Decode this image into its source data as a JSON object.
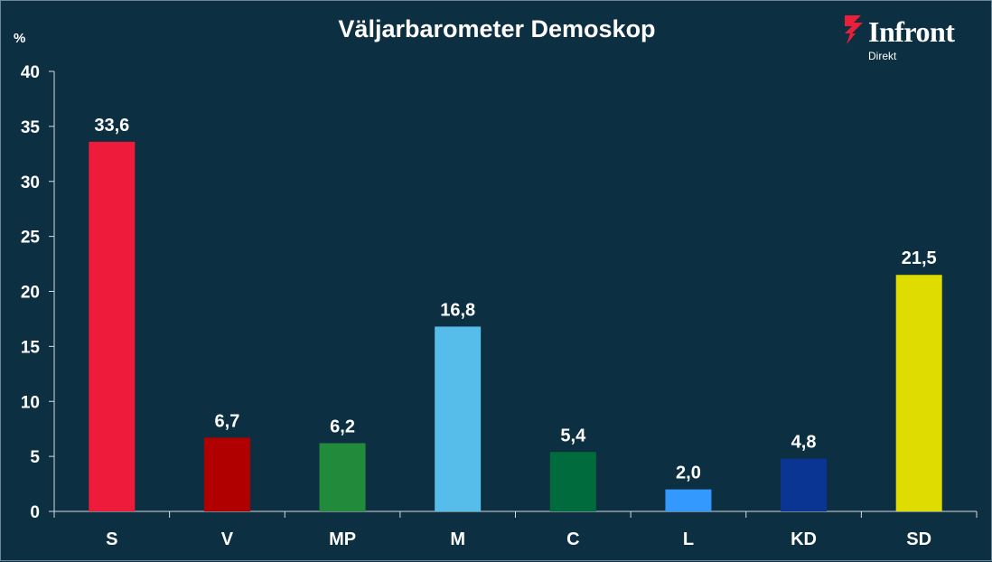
{
  "chart_data": {
    "type": "bar",
    "title": "Väljarbarometer Demoskop",
    "ylabel": "%",
    "xlabel": "",
    "ylim": [
      0,
      40
    ],
    "yticks": [
      "0",
      "5",
      "10",
      "15",
      "20",
      "25",
      "30",
      "35",
      "40"
    ],
    "categories": [
      "S",
      "V",
      "MP",
      "M",
      "C",
      "L",
      "KD",
      "SD"
    ],
    "values": [
      33.6,
      6.7,
      6.2,
      16.8,
      5.4,
      2.0,
      4.8,
      21.5
    ],
    "value_labels": [
      "33,6",
      "6,7",
      "6,2",
      "16,8",
      "5,4",
      "2,0",
      "4,8",
      "21,5"
    ],
    "colors": [
      "#ee1c3a",
      "#b00000",
      "#228b3b",
      "#56bcea",
      "#006b3c",
      "#3399ff",
      "#0a3593",
      "#dedc00"
    ],
    "grid": false,
    "legend": "none"
  },
  "logo": {
    "name": "Infront",
    "sub": "Direkt",
    "mark_color": "#e8203a"
  },
  "theme": {
    "background": "#0d2f42",
    "axis_color": "#d9d9d9",
    "text_color": "#ffffff"
  }
}
